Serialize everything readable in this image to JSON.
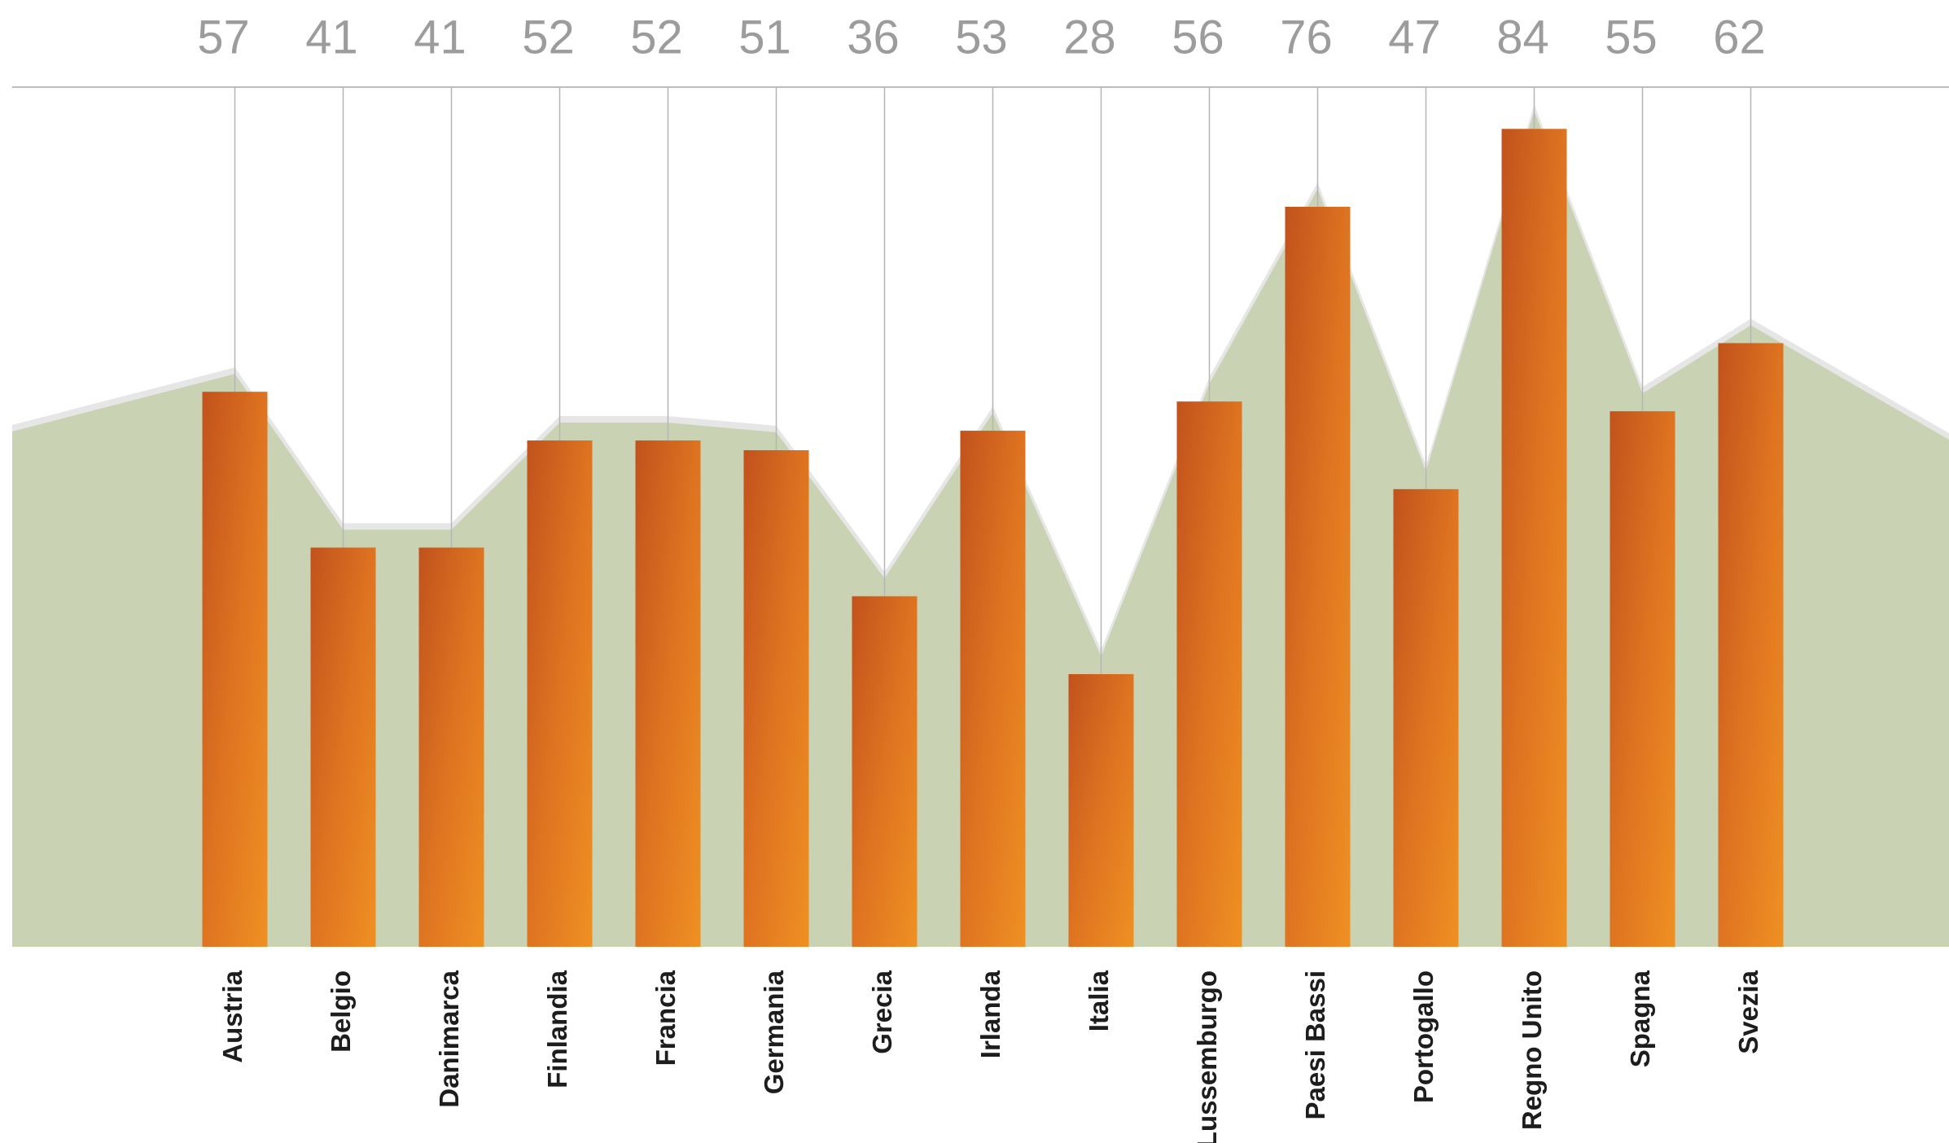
{
  "chart_data": {
    "type": "bar",
    "categories": [
      "Austria",
      "Belgio",
      "Danimarca",
      "Finlandia",
      "Francia",
      "Germania",
      "Grecia",
      "Irlanda",
      "Italia",
      "Lussemburgo",
      "Paesi Bassi",
      "Portogallo",
      "Regno Unito",
      "Spagna",
      "Svezia"
    ],
    "values": [
      57,
      41,
      41,
      52,
      52,
      51,
      36,
      53,
      28,
      56,
      76,
      47,
      84,
      55,
      62
    ],
    "color": "#e8821f"
  }
}
